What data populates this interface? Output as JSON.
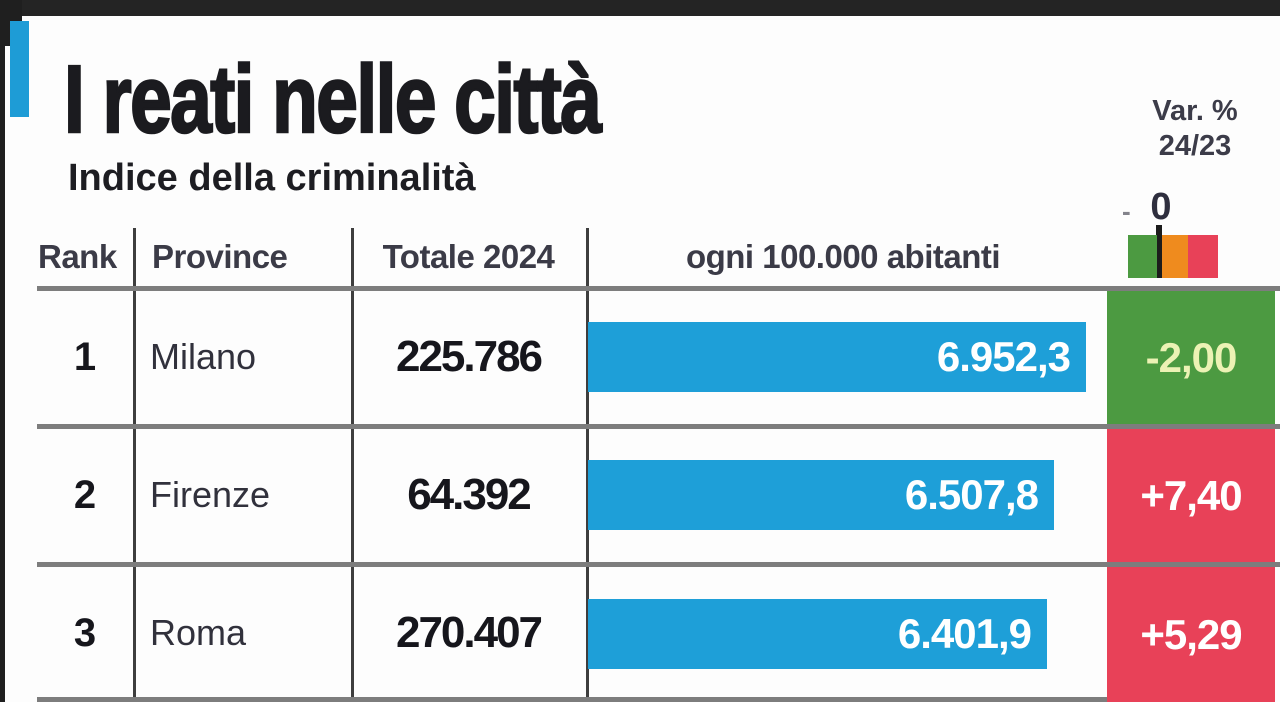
{
  "title": "I reati nelle città",
  "subtitle": "Indice della criminalità",
  "var_header": {
    "line1": "Var. %",
    "line2": "24/23"
  },
  "legend": {
    "minus_label": "-",
    "zero_label": "0"
  },
  "columns": {
    "rank": "Rank",
    "province": "Province",
    "total": "Totale 2024",
    "per_capita": "ogni 100.000 abitanti"
  },
  "colors": {
    "bar_blue": "#1e9fd8",
    "accent_blue": "#1e9cd6",
    "green": "#4c9a41",
    "orange": "#ef8b1e",
    "red": "#e84158",
    "green_cell_text": "#ecf2b4",
    "red_cell_text": "#ffffff",
    "divider_gray": "#7d7d7d",
    "line_dark": "#3e3e3e"
  },
  "chart_data": {
    "type": "bar",
    "title": "I reati nelle città",
    "subtitle": "Indice della criminalità",
    "xlabel": "ogni 100.000 abitanti",
    "xmax": 6952.3,
    "categories": [
      "Milano",
      "Firenze",
      "Roma"
    ],
    "series": [
      {
        "name": "Reati ogni 100.000 abitanti",
        "values": [
          6952.3,
          6507.8,
          6401.9
        ]
      },
      {
        "name": "Var. % 24/23",
        "values": [
          -2.0,
          7.4,
          5.29
        ]
      }
    ],
    "rows": [
      {
        "rank": "1",
        "province": "Milano",
        "total_2024": "225.786",
        "per_100k": "6.952,3",
        "per_100k_value": 6952.3,
        "var_pct": "-2,00",
        "var_value": -2.0,
        "var_color": "green"
      },
      {
        "rank": "2",
        "province": "Firenze",
        "total_2024": "64.392",
        "per_100k": "6.507,8",
        "per_100k_value": 6507.8,
        "var_pct": "+7,40",
        "var_value": 7.4,
        "var_color": "red"
      },
      {
        "rank": "3",
        "province": "Roma",
        "total_2024": "270.407",
        "per_100k": "6.401,9",
        "per_100k_value": 6401.9,
        "var_pct": "+5,29",
        "var_value": 5.29,
        "var_color": "red"
      }
    ]
  }
}
